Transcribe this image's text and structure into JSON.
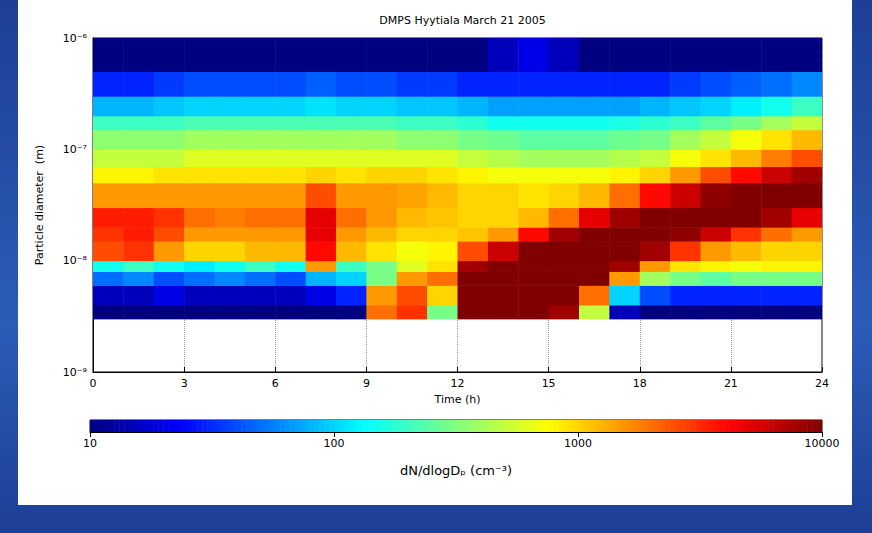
{
  "chart_data": {
    "type": "heatmap",
    "title": "DMPS Hyytiala March 21 2005",
    "x_label": "Time (h)",
    "y_label": "Particle diameter  (m)",
    "xlim": [
      0,
      24
    ],
    "xticks": [
      0,
      3,
      6,
      9,
      12,
      15,
      18,
      21,
      24
    ],
    "ylim": [
      1e-09,
      1e-06
    ],
    "yticks": [
      {
        "value": 1e-09,
        "label": "10⁻⁹"
      },
      {
        "value": 1e-08,
        "label": "10⁻⁸"
      },
      {
        "value": 1e-07,
        "label": "10⁻⁷"
      },
      {
        "value": 1e-06,
        "label": "10⁻⁶"
      }
    ],
    "log": "y",
    "grid": true,
    "time_bins": [
      0,
      1,
      2,
      3,
      4,
      5,
      6,
      7,
      8,
      9,
      10,
      11,
      12,
      13,
      14,
      15,
      16,
      17,
      18,
      19,
      20,
      21,
      22,
      23,
      24
    ],
    "diameter_bins": [
      3e-09,
      4e-09,
      6e-09,
      8e-09,
      1e-08,
      1.5e-08,
      2e-08,
      3e-08,
      5e-08,
      7e-08,
      1e-07,
      1.5e-07,
      2e-07,
      3e-07,
      5e-07,
      1e-06
    ],
    "cells": [
      [
        10,
        10,
        10,
        10,
        10,
        10,
        10,
        10,
        10,
        2000,
        3000,
        300,
        10000,
        10000,
        10000,
        8000,
        500,
        15,
        10,
        10,
        10,
        10,
        10,
        10
      ],
      [
        15,
        15,
        20,
        15,
        15,
        15,
        15,
        20,
        30,
        1500,
        2500,
        1000,
        10000,
        10000,
        10000,
        10000,
        2000,
        100,
        40,
        30,
        30,
        30,
        30,
        30
      ],
      [
        50,
        60,
        40,
        50,
        60,
        50,
        40,
        80,
        100,
        300,
        1500,
        2000,
        10000,
        10000,
        10000,
        10000,
        10000,
        1500,
        400,
        300,
        250,
        300,
        300,
        300
      ],
      [
        150,
        200,
        150,
        120,
        150,
        200,
        150,
        1500,
        200,
        300,
        600,
        900,
        8000,
        10000,
        10000,
        10000,
        10000,
        8000,
        1500,
        900,
        800,
        700,
        800,
        800
      ],
      [
        2500,
        3000,
        1500,
        1000,
        1000,
        1200,
        1200,
        4000,
        1200,
        900,
        700,
        800,
        2500,
        6000,
        10000,
        10000,
        10000,
        10000,
        8000,
        3000,
        1500,
        1200,
        1000,
        1000
      ],
      [
        3000,
        3500,
        2500,
        1500,
        1500,
        1500,
        1500,
        5000,
        1500,
        1200,
        1000,
        1000,
        1100,
        1500,
        4000,
        8000,
        10000,
        10000,
        10000,
        9000,
        6000,
        3000,
        2000,
        1500
      ],
      [
        3500,
        3500,
        3000,
        2000,
        1800,
        2000,
        2000,
        5000,
        2000,
        1500,
        1200,
        1100,
        1000,
        1000,
        1200,
        2000,
        5000,
        8000,
        10000,
        10000,
        10000,
        10000,
        8000,
        5000
      ],
      [
        1500,
        1500,
        1500,
        1500,
        1500,
        1500,
        1500,
        2500,
        1500,
        1500,
        1400,
        1200,
        1000,
        1000,
        900,
        1000,
        1200,
        2000,
        4000,
        6000,
        9000,
        10000,
        10000,
        10000
      ],
      [
        800,
        800,
        900,
        900,
        900,
        900,
        900,
        1000,
        900,
        1000,
        1000,
        900,
        800,
        700,
        700,
        700,
        700,
        800,
        1000,
        1500,
        2500,
        4000,
        6000,
        8000
      ],
      [
        500,
        500,
        500,
        600,
        600,
        600,
        600,
        600,
        600,
        600,
        600,
        600,
        500,
        450,
        400,
        400,
        400,
        450,
        500,
        700,
        900,
        1200,
        1800,
        2500
      ],
      [
        350,
        350,
        350,
        400,
        400,
        400,
        400,
        400,
        400,
        400,
        350,
        350,
        300,
        280,
        250,
        250,
        250,
        280,
        300,
        400,
        500,
        700,
        900,
        1200
      ],
      [
        200,
        200,
        200,
        220,
        220,
        220,
        220,
        220,
        220,
        220,
        200,
        200,
        180,
        150,
        150,
        150,
        150,
        160,
        180,
        200,
        250,
        300,
        400,
        500
      ],
      [
        80,
        80,
        90,
        100,
        100,
        100,
        100,
        110,
        100,
        100,
        90,
        90,
        80,
        70,
        70,
        70,
        70,
        70,
        80,
        90,
        100,
        120,
        150,
        200
      ],
      [
        30,
        30,
        35,
        40,
        40,
        40,
        40,
        45,
        40,
        40,
        35,
        35,
        30,
        30,
        30,
        30,
        30,
        30,
        30,
        35,
        40,
        45,
        50,
        60
      ],
      [
        10,
        10,
        10,
        10,
        10,
        10,
        10,
        10,
        10,
        10,
        10,
        10,
        10,
        15,
        20,
        15,
        10,
        10,
        10,
        10,
        10,
        10,
        10,
        10
      ]
    ],
    "colorbar": {
      "label": "dN/dlogDₚ (cm⁻³)",
      "range": [
        10,
        10000
      ],
      "ticks": [
        10,
        100,
        1000,
        10000
      ],
      "log": true
    }
  }
}
